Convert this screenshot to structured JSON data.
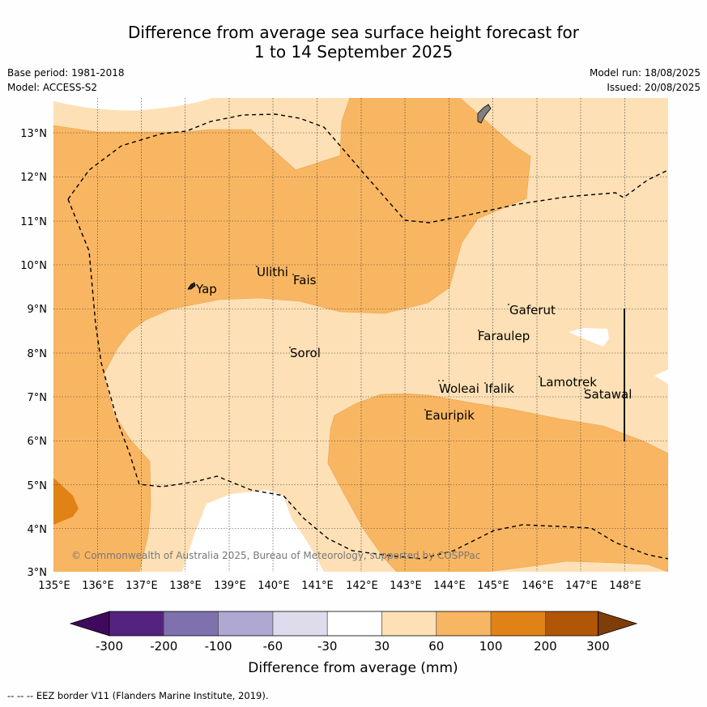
{
  "title": {
    "line1": "Difference from average sea surface height forecast for",
    "line2": "1 to 14 September 2025"
  },
  "meta": {
    "base_period": "Base period: 1981-2018",
    "model": "Model: ACCESS-S2",
    "model_run": "Model run: 18/08/2025",
    "issued": "Issued: 20/08/2025"
  },
  "map": {
    "lat_labels": [
      "13°N",
      "12°N",
      "11°N",
      "10°N",
      "9°N",
      "8°N",
      "7°N",
      "6°N",
      "5°N",
      "4°N",
      "3°N"
    ],
    "lon_labels": [
      "135°E",
      "136°E",
      "137°E",
      "138°E",
      "139°E",
      "140°E",
      "141°E",
      "142°E",
      "143°E",
      "144°E",
      "145°E",
      "146°E",
      "147°E",
      "148°E"
    ],
    "places": [
      "Ulithi",
      "Fais",
      "Yap",
      "Gaferut",
      "Faraulep",
      "Sorol",
      "Lamotrek",
      "Woleai",
      "Ifalik",
      "Satawal",
      "Eauripik"
    ],
    "copyright": "© Commonwealth of Australia 2025, Bureau of Meteorology, supported by COSPPac",
    "colors": {
      "white": "#ffffff",
      "light_orange": "#fde0b5",
      "orange": "#f9b662",
      "dark_orange": "#e08216"
    }
  },
  "colorbar": {
    "label": "Difference from average (mm)",
    "ticks": [
      "-300",
      "-200",
      "-100",
      "-60",
      "-30",
      "30",
      "60",
      "100",
      "200",
      "300"
    ],
    "colors": [
      "#3f0a5c",
      "#54237f",
      "#7f71ae",
      "#aea8d2",
      "#dddbec",
      "#ffffff",
      "#fde0b5",
      "#f9b662",
      "#e08216",
      "#b05606",
      "#7f3d0a"
    ]
  },
  "footer": "-- -- -- EEZ border V11 (Flanders Marine Institute, 2019)."
}
